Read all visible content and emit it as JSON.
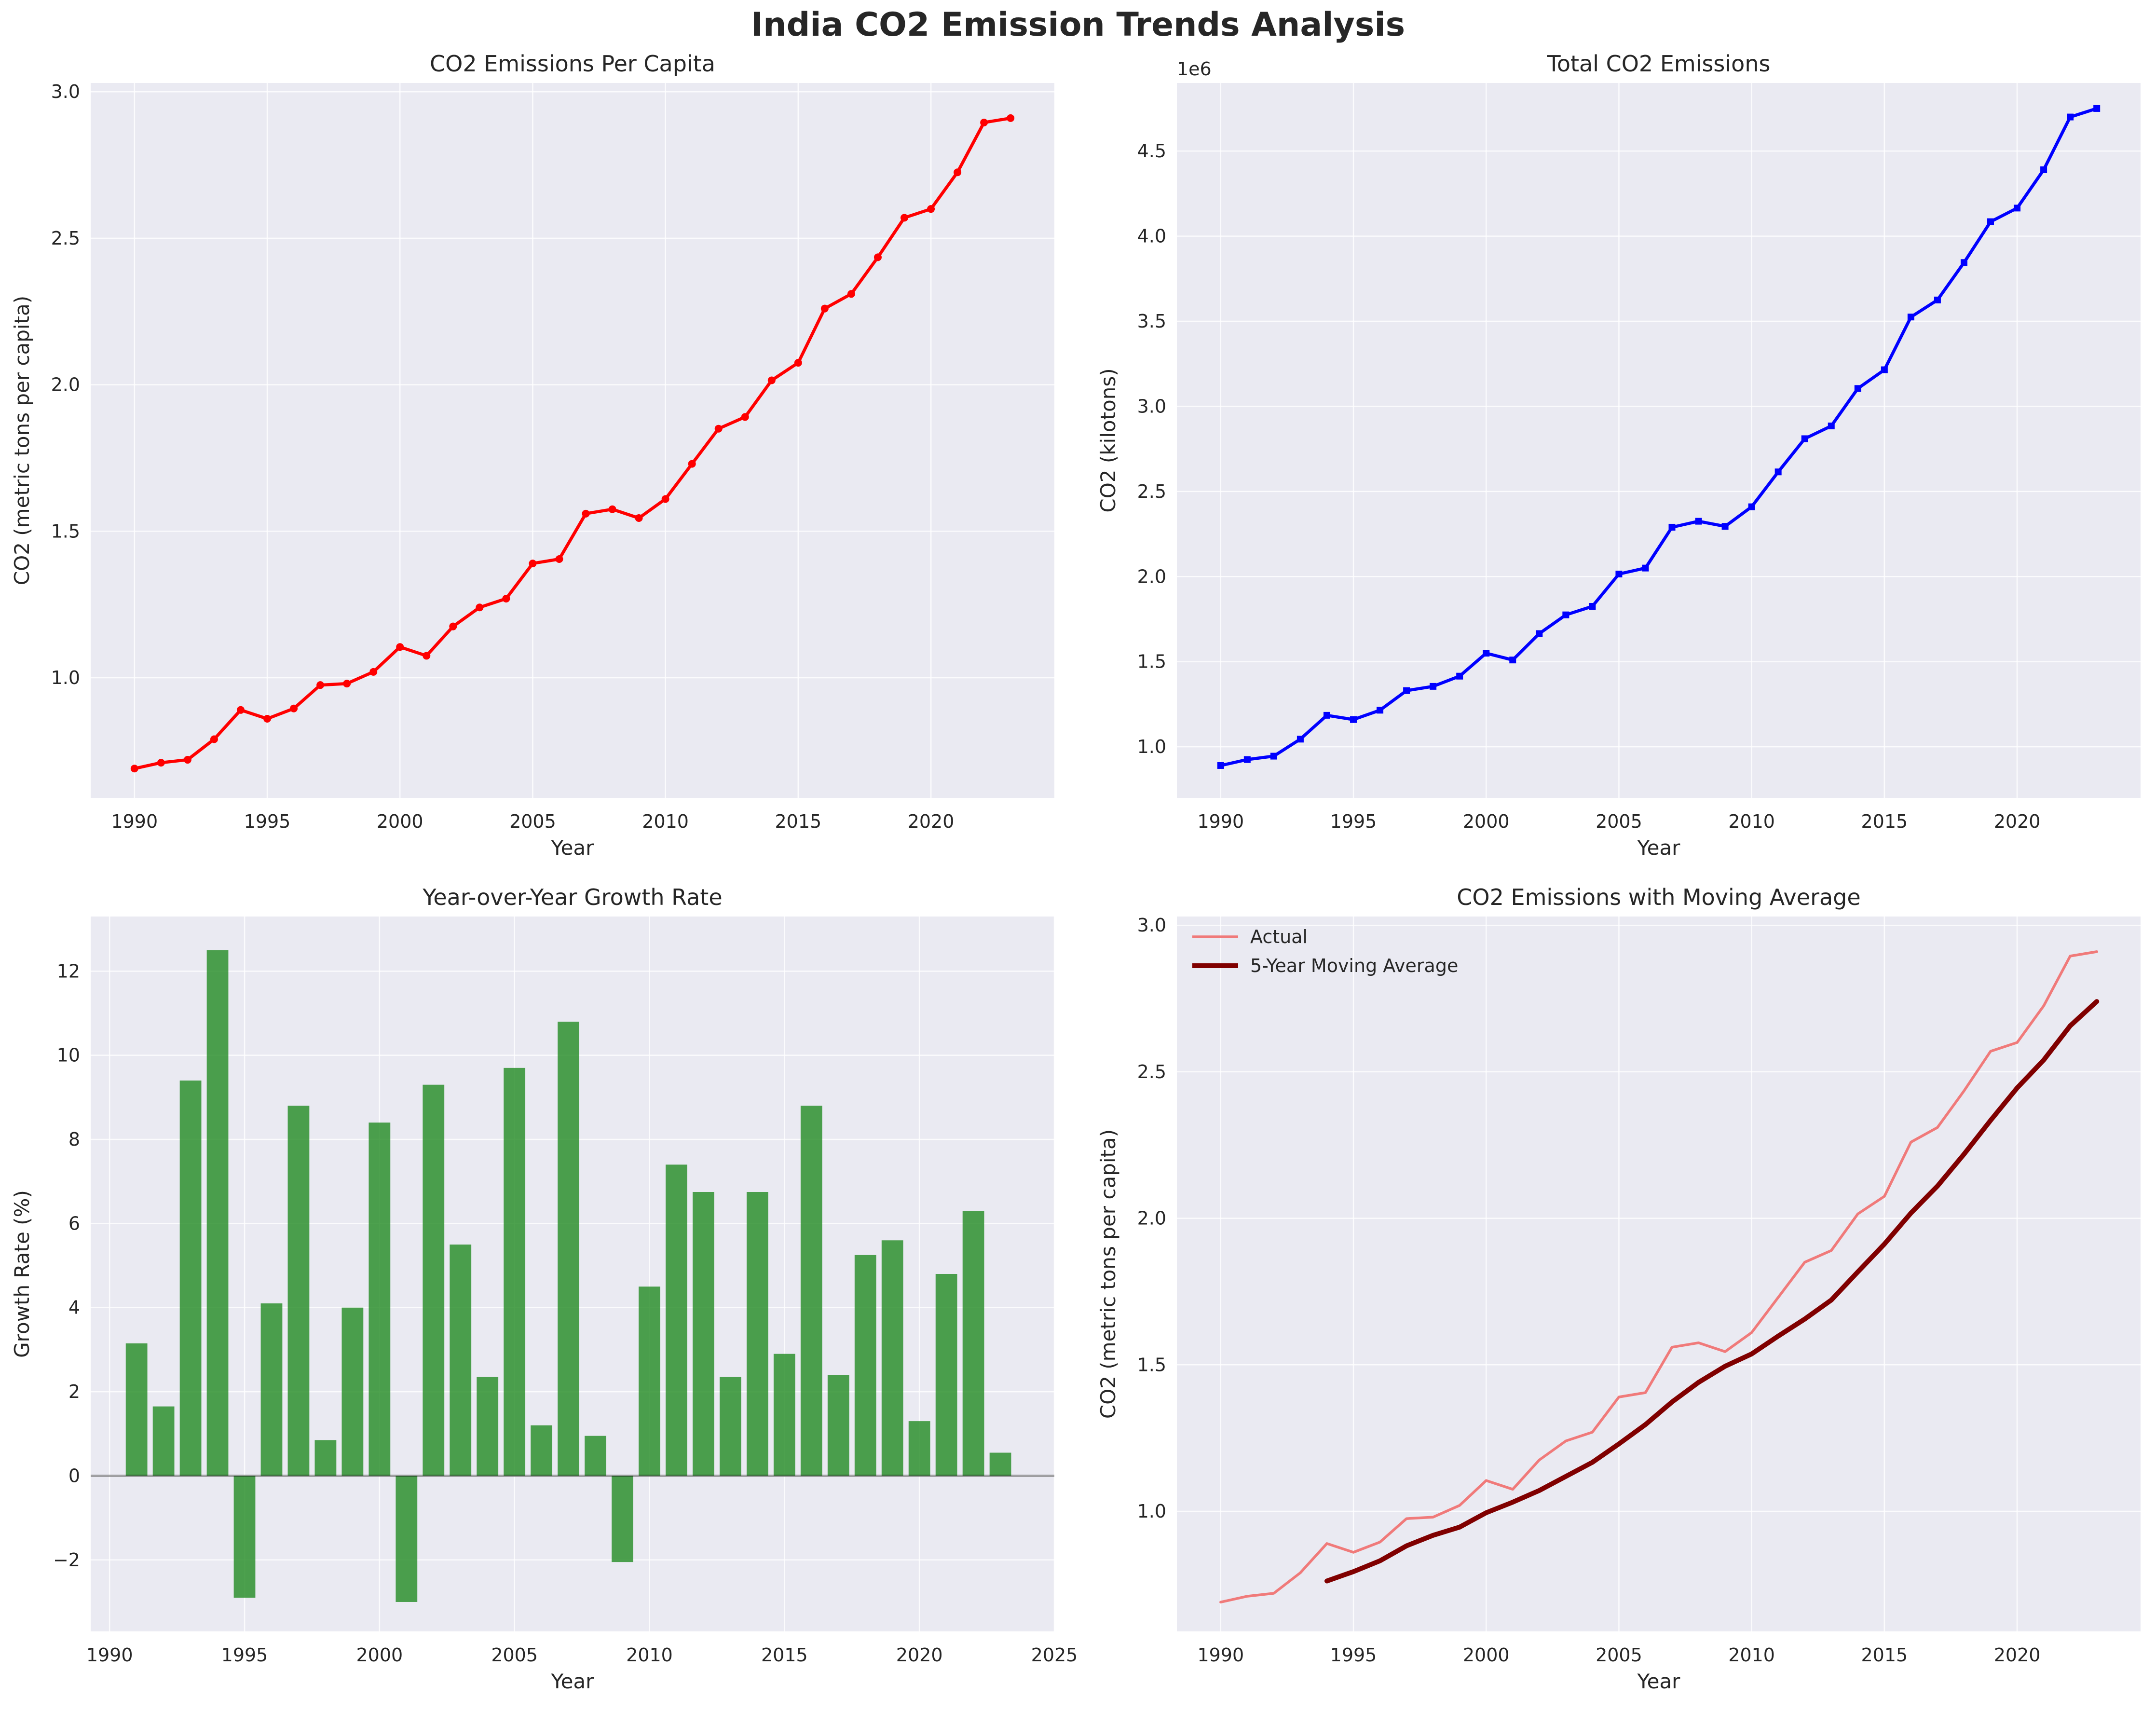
{
  "figure_title": "India CO2 Emission Trends Analysis",
  "colors": {
    "background": "#eaeaf2",
    "grid": "#ffffff",
    "text": "#262626"
  },
  "chart_data": [
    {
      "id": "per_capita",
      "type": "line",
      "title": "CO2 Emissions Per Capita",
      "xlabel": "Year",
      "ylabel": "CO2 (metric tons per capita)",
      "xlim": [
        1988.35,
        2024.65
      ],
      "ylim": [
        0.59,
        3.03
      ],
      "xticks": [
        1990,
        1995,
        2000,
        2005,
        2010,
        2015,
        2020
      ],
      "yticks": [
        1.0,
        1.5,
        2.0,
        2.5,
        3.0
      ],
      "ytick_labels": [
        "1.0",
        "1.5",
        "2.0",
        "2.5",
        "3.0"
      ],
      "grid": true,
      "series": [
        {
          "color": "#ff0000",
          "marker": "circle",
          "x": [
            1990,
            1991,
            1992,
            1993,
            1994,
            1995,
            1996,
            1997,
            1998,
            1999,
            2000,
            2001,
            2002,
            2003,
            2004,
            2005,
            2006,
            2007,
            2008,
            2009,
            2010,
            2011,
            2012,
            2013,
            2014,
            2015,
            2016,
            2017,
            2018,
            2019,
            2020,
            2021,
            2022,
            2023
          ],
          "y": [
            0.69,
            0.71,
            0.72,
            0.79,
            0.89,
            0.86,
            0.895,
            0.975,
            0.98,
            1.02,
            1.105,
            1.075,
            1.175,
            1.24,
            1.27,
            1.39,
            1.405,
            1.56,
            1.575,
            1.545,
            1.61,
            1.73,
            1.85,
            1.89,
            2.015,
            2.075,
            2.26,
            2.31,
            2.435,
            2.57,
            2.6,
            2.725,
            2.895,
            2.91
          ]
        }
      ]
    },
    {
      "id": "total",
      "type": "line",
      "title": "Total CO2 Emissions",
      "xlabel": "Year",
      "ylabel": "CO2 (kilotons)",
      "offset_text": "1e6",
      "xlim": [
        1988.35,
        2024.65
      ],
      "ylim": [
        0.7,
        4.9
      ],
      "xticks": [
        1990,
        1995,
        2000,
        2005,
        2010,
        2015,
        2020
      ],
      "yticks": [
        1.0,
        1.5,
        2.0,
        2.5,
        3.0,
        3.5,
        4.0,
        4.5
      ],
      "ytick_labels": [
        "1.0",
        "1.5",
        "2.0",
        "2.5",
        "3.0",
        "3.5",
        "4.0",
        "4.5"
      ],
      "grid": true,
      "series": [
        {
          "color": "#0000ff",
          "marker": "square",
          "x": [
            1990,
            1991,
            1992,
            1993,
            1994,
            1995,
            1996,
            1997,
            1998,
            1999,
            2000,
            2001,
            2002,
            2003,
            2004,
            2005,
            2006,
            2007,
            2008,
            2009,
            2010,
            2011,
            2012,
            2013,
            2014,
            2015,
            2016,
            2017,
            2018,
            2019,
            2020,
            2021,
            2022,
            2023
          ],
          "y": [
            0.89,
            0.925,
            0.945,
            1.045,
            1.185,
            1.16,
            1.215,
            1.33,
            1.355,
            1.415,
            1.55,
            1.51,
            1.665,
            1.775,
            1.825,
            2.015,
            2.05,
            2.29,
            2.325,
            2.295,
            2.41,
            2.615,
            2.81,
            2.885,
            3.105,
            3.215,
            3.525,
            3.625,
            3.845,
            4.085,
            4.165,
            4.39,
            4.7,
            4.75
          ]
        }
      ]
    },
    {
      "id": "growth",
      "type": "bar",
      "title": "Year-over-Year Growth Rate",
      "xlabel": "Year",
      "ylabel": "Growth Rate (%)",
      "xlim": [
        1989.3,
        2025
      ],
      "ylim": [
        -3.7,
        13.3
      ],
      "xticks": [
        1990,
        1995,
        2000,
        2005,
        2010,
        2015,
        2020,
        2025
      ],
      "yticks": [
        -2,
        0,
        2,
        4,
        6,
        8,
        10,
        12
      ],
      "ytick_labels": [
        "−2",
        "0",
        "2",
        "4",
        "6",
        "8",
        "10",
        "12"
      ],
      "grid": true,
      "zero_line": true,
      "bar_color": "#228b22",
      "x": [
        1991,
        1992,
        1993,
        1994,
        1995,
        1996,
        1997,
        1998,
        1999,
        2000,
        2001,
        2002,
        2003,
        2004,
        2005,
        2006,
        2007,
        2008,
        2009,
        2010,
        2011,
        2012,
        2013,
        2014,
        2015,
        2016,
        2017,
        2018,
        2019,
        2020,
        2021,
        2022,
        2023
      ],
      "values": [
        3.15,
        1.65,
        9.4,
        12.5,
        -2.9,
        4.1,
        8.8,
        0.85,
        4.0,
        8.4,
        -3.0,
        9.3,
        5.5,
        2.35,
        9.7,
        1.2,
        10.8,
        0.95,
        -2.05,
        4.5,
        7.4,
        6.75,
        2.35,
        6.75,
        2.9,
        8.8,
        2.4,
        5.25,
        5.6,
        1.3,
        4.8,
        6.3,
        0.55
      ]
    },
    {
      "id": "moving_average",
      "type": "line",
      "title": "CO2 Emissions with Moving Average",
      "xlabel": "Year",
      "ylabel": "CO2 (metric tons per capita)",
      "xlim": [
        1988.35,
        2024.65
      ],
      "ylim": [
        0.59,
        3.03
      ],
      "xticks": [
        1990,
        1995,
        2000,
        2005,
        2010,
        2015,
        2020
      ],
      "yticks": [
        1.0,
        1.5,
        2.0,
        2.5,
        3.0
      ],
      "ytick_labels": [
        "1.0",
        "1.5",
        "2.0",
        "2.5",
        "3.0"
      ],
      "grid": true,
      "legend": "top-left",
      "series": [
        {
          "name": "Actual",
          "color": "#f07a7a",
          "x": [
            1990,
            1991,
            1992,
            1993,
            1994,
            1995,
            1996,
            1997,
            1998,
            1999,
            2000,
            2001,
            2002,
            2003,
            2004,
            2005,
            2006,
            2007,
            2008,
            2009,
            2010,
            2011,
            2012,
            2013,
            2014,
            2015,
            2016,
            2017,
            2018,
            2019,
            2020,
            2021,
            2022,
            2023
          ],
          "y": [
            0.69,
            0.71,
            0.72,
            0.79,
            0.89,
            0.86,
            0.895,
            0.975,
            0.98,
            1.02,
            1.105,
            1.075,
            1.175,
            1.24,
            1.27,
            1.39,
            1.405,
            1.56,
            1.575,
            1.545,
            1.61,
            1.73,
            1.85,
            1.89,
            2.015,
            2.075,
            2.26,
            2.31,
            2.435,
            2.57,
            2.6,
            2.725,
            2.895,
            2.91
          ]
        },
        {
          "name": "5-Year Moving Average",
          "color": "#800000",
          "x": [
            1994,
            1995,
            1996,
            1997,
            1998,
            1999,
            2000,
            2001,
            2002,
            2003,
            2004,
            2005,
            2006,
            2007,
            2008,
            2009,
            2010,
            2011,
            2012,
            2013,
            2014,
            2015,
            2016,
            2017,
            2018,
            2019,
            2020,
            2021,
            2022,
            2023
          ],
          "y": [
            0.762,
            0.794,
            0.831,
            0.882,
            0.918,
            0.946,
            0.995,
            1.031,
            1.071,
            1.119,
            1.167,
            1.23,
            1.296,
            1.373,
            1.44,
            1.495,
            1.537,
            1.598,
            1.656,
            1.721,
            1.817,
            1.912,
            2.018,
            2.11,
            2.219,
            2.334,
            2.445,
            2.54,
            2.657,
            2.74
          ]
        }
      ]
    }
  ]
}
